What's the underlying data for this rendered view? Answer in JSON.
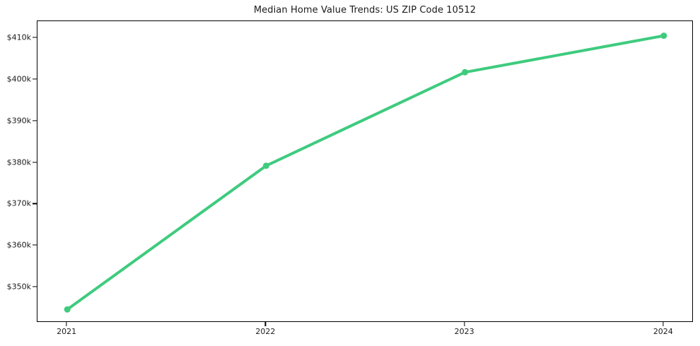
{
  "chart_data": {
    "type": "line",
    "title": "Median Home Value Trends: US ZIP Code 10512",
    "categories": [
      2021,
      2022,
      2023,
      2024
    ],
    "series": [
      {
        "name": "Median Home Value",
        "values": [
          344700,
          379300,
          401800,
          410600
        ]
      }
    ],
    "xlabel": "",
    "ylabel": "",
    "xlim": [
      2020.85,
      2024.15
    ],
    "ylim": [
      341500,
      414100
    ],
    "xticks": {
      "values": [
        2021,
        2022,
        2023,
        2024
      ],
      "labels": [
        "2021",
        "2022",
        "2023",
        "2024"
      ]
    },
    "yticks": {
      "values": [
        350000,
        360000,
        370000,
        380000,
        390000,
        400000,
        410000
      ],
      "labels": [
        "$350k",
        "$360k",
        "$370k",
        "$380k",
        "$390k",
        "$400k",
        "$410k"
      ]
    },
    "grid": false,
    "legend_position": "none",
    "line_color": "#3ecb7e",
    "marker_color": "#3ecb7e",
    "text_color": "#1a1a1a",
    "spine_color": "#000000",
    "background_color": "#ffffff"
  }
}
